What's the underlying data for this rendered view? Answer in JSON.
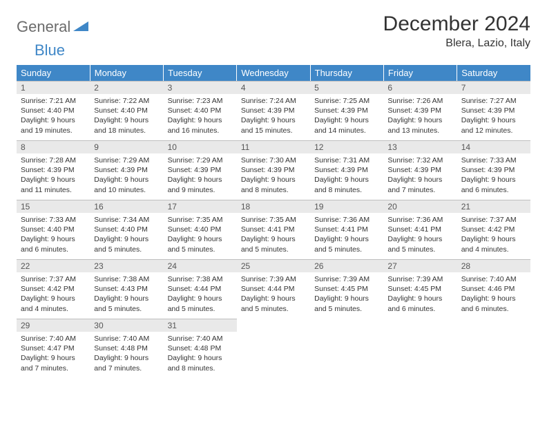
{
  "branding": {
    "logo_word1": "General",
    "logo_word2": "Blue",
    "logo_color_gray": "#6b6b6b",
    "logo_color_blue": "#3f87c7"
  },
  "header": {
    "title": "December 2024",
    "location": "Blera, Lazio, Italy"
  },
  "calendar": {
    "type": "table",
    "accent_color": "#3f87c7",
    "daynum_bg": "#e9e9e9",
    "border_color": "#bfbfbf",
    "text_color": "#333333",
    "font_family": "Arial",
    "title_fontsize": 30,
    "location_fontsize": 16,
    "header_fontsize": 13,
    "cell_fontsize": 10.5,
    "columns": [
      "Sunday",
      "Monday",
      "Tuesday",
      "Wednesday",
      "Thursday",
      "Friday",
      "Saturday"
    ],
    "weeks": [
      [
        {
          "day": "1",
          "sunrise": "Sunrise: 7:21 AM",
          "sunset": "Sunset: 4:40 PM",
          "daylight": "Daylight: 9 hours and 19 minutes."
        },
        {
          "day": "2",
          "sunrise": "Sunrise: 7:22 AM",
          "sunset": "Sunset: 4:40 PM",
          "daylight": "Daylight: 9 hours and 18 minutes."
        },
        {
          "day": "3",
          "sunrise": "Sunrise: 7:23 AM",
          "sunset": "Sunset: 4:40 PM",
          "daylight": "Daylight: 9 hours and 16 minutes."
        },
        {
          "day": "4",
          "sunrise": "Sunrise: 7:24 AM",
          "sunset": "Sunset: 4:39 PM",
          "daylight": "Daylight: 9 hours and 15 minutes."
        },
        {
          "day": "5",
          "sunrise": "Sunrise: 7:25 AM",
          "sunset": "Sunset: 4:39 PM",
          "daylight": "Daylight: 9 hours and 14 minutes."
        },
        {
          "day": "6",
          "sunrise": "Sunrise: 7:26 AM",
          "sunset": "Sunset: 4:39 PM",
          "daylight": "Daylight: 9 hours and 13 minutes."
        },
        {
          "day": "7",
          "sunrise": "Sunrise: 7:27 AM",
          "sunset": "Sunset: 4:39 PM",
          "daylight": "Daylight: 9 hours and 12 minutes."
        }
      ],
      [
        {
          "day": "8",
          "sunrise": "Sunrise: 7:28 AM",
          "sunset": "Sunset: 4:39 PM",
          "daylight": "Daylight: 9 hours and 11 minutes."
        },
        {
          "day": "9",
          "sunrise": "Sunrise: 7:29 AM",
          "sunset": "Sunset: 4:39 PM",
          "daylight": "Daylight: 9 hours and 10 minutes."
        },
        {
          "day": "10",
          "sunrise": "Sunrise: 7:29 AM",
          "sunset": "Sunset: 4:39 PM",
          "daylight": "Daylight: 9 hours and 9 minutes."
        },
        {
          "day": "11",
          "sunrise": "Sunrise: 7:30 AM",
          "sunset": "Sunset: 4:39 PM",
          "daylight": "Daylight: 9 hours and 8 minutes."
        },
        {
          "day": "12",
          "sunrise": "Sunrise: 7:31 AM",
          "sunset": "Sunset: 4:39 PM",
          "daylight": "Daylight: 9 hours and 8 minutes."
        },
        {
          "day": "13",
          "sunrise": "Sunrise: 7:32 AM",
          "sunset": "Sunset: 4:39 PM",
          "daylight": "Daylight: 9 hours and 7 minutes."
        },
        {
          "day": "14",
          "sunrise": "Sunrise: 7:33 AM",
          "sunset": "Sunset: 4:39 PM",
          "daylight": "Daylight: 9 hours and 6 minutes."
        }
      ],
      [
        {
          "day": "15",
          "sunrise": "Sunrise: 7:33 AM",
          "sunset": "Sunset: 4:40 PM",
          "daylight": "Daylight: 9 hours and 6 minutes."
        },
        {
          "day": "16",
          "sunrise": "Sunrise: 7:34 AM",
          "sunset": "Sunset: 4:40 PM",
          "daylight": "Daylight: 9 hours and 5 minutes."
        },
        {
          "day": "17",
          "sunrise": "Sunrise: 7:35 AM",
          "sunset": "Sunset: 4:40 PM",
          "daylight": "Daylight: 9 hours and 5 minutes."
        },
        {
          "day": "18",
          "sunrise": "Sunrise: 7:35 AM",
          "sunset": "Sunset: 4:41 PM",
          "daylight": "Daylight: 9 hours and 5 minutes."
        },
        {
          "day": "19",
          "sunrise": "Sunrise: 7:36 AM",
          "sunset": "Sunset: 4:41 PM",
          "daylight": "Daylight: 9 hours and 5 minutes."
        },
        {
          "day": "20",
          "sunrise": "Sunrise: 7:36 AM",
          "sunset": "Sunset: 4:41 PM",
          "daylight": "Daylight: 9 hours and 5 minutes."
        },
        {
          "day": "21",
          "sunrise": "Sunrise: 7:37 AM",
          "sunset": "Sunset: 4:42 PM",
          "daylight": "Daylight: 9 hours and 4 minutes."
        }
      ],
      [
        {
          "day": "22",
          "sunrise": "Sunrise: 7:37 AM",
          "sunset": "Sunset: 4:42 PM",
          "daylight": "Daylight: 9 hours and 4 minutes."
        },
        {
          "day": "23",
          "sunrise": "Sunrise: 7:38 AM",
          "sunset": "Sunset: 4:43 PM",
          "daylight": "Daylight: 9 hours and 5 minutes."
        },
        {
          "day": "24",
          "sunrise": "Sunrise: 7:38 AM",
          "sunset": "Sunset: 4:44 PM",
          "daylight": "Daylight: 9 hours and 5 minutes."
        },
        {
          "day": "25",
          "sunrise": "Sunrise: 7:39 AM",
          "sunset": "Sunset: 4:44 PM",
          "daylight": "Daylight: 9 hours and 5 minutes."
        },
        {
          "day": "26",
          "sunrise": "Sunrise: 7:39 AM",
          "sunset": "Sunset: 4:45 PM",
          "daylight": "Daylight: 9 hours and 5 minutes."
        },
        {
          "day": "27",
          "sunrise": "Sunrise: 7:39 AM",
          "sunset": "Sunset: 4:45 PM",
          "daylight": "Daylight: 9 hours and 6 minutes."
        },
        {
          "day": "28",
          "sunrise": "Sunrise: 7:40 AM",
          "sunset": "Sunset: 4:46 PM",
          "daylight": "Daylight: 9 hours and 6 minutes."
        }
      ],
      [
        {
          "day": "29",
          "sunrise": "Sunrise: 7:40 AM",
          "sunset": "Sunset: 4:47 PM",
          "daylight": "Daylight: 9 hours and 7 minutes."
        },
        {
          "day": "30",
          "sunrise": "Sunrise: 7:40 AM",
          "sunset": "Sunset: 4:48 PM",
          "daylight": "Daylight: 9 hours and 7 minutes."
        },
        {
          "day": "31",
          "sunrise": "Sunrise: 7:40 AM",
          "sunset": "Sunset: 4:48 PM",
          "daylight": "Daylight: 9 hours and 8 minutes."
        },
        null,
        null,
        null,
        null
      ]
    ]
  }
}
